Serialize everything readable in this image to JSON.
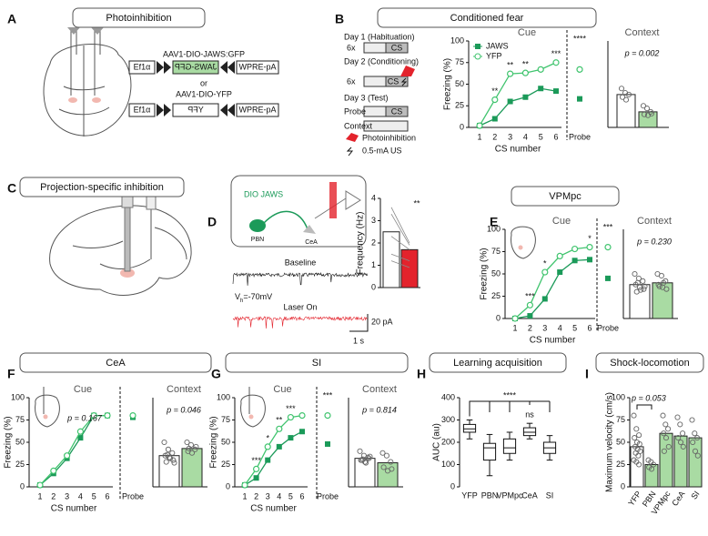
{
  "panel_labels": [
    "A",
    "B",
    "C",
    "D",
    "E",
    "F",
    "G",
    "H",
    "I"
  ],
  "panel_titles": [
    "Photoinhibition",
    "Conditioned fear",
    "Projection-specific inhibition",
    "VPMpc",
    "CeA",
    "SI",
    "Learning acquisition",
    "Shock-locomotion"
  ],
  "construct_a": {
    "vector": "AAV1-DIO-JAWS:GFP",
    "promoter": "Ef1α",
    "gene": "JAWS-GFP",
    "tail": "WPRE-pA"
  },
  "or": "or",
  "construct_b": {
    "vector": "AAV1-DIO-YFP",
    "promoter": "Ef1α",
    "gene": "YFP",
    "tail": "WPRE-pA"
  },
  "protocol": {
    "day1": "Day 1 (Habituation)",
    "rep1": "6x",
    "cs1": "CS",
    "day2": "Day 2 (Conditioning)",
    "rep2": "6x",
    "cs2": "CS",
    "day3": "Day 3 (Test)",
    "probe": "Probe",
    "cs3": "CS",
    "context": "Context",
    "legend_light": "Photoinhibition",
    "legend_shock": "0.5-mA US"
  },
  "circuit": {
    "virus": "DIO JAWS",
    "source": "PBN",
    "target": "CeA",
    "baseline": "Baseline",
    "holding": "V",
    "holding_sub": "h",
    "holding_value": "=-70mV",
    "laser": "Laser On",
    "scale_y": "20 pA",
    "scale_x": "1 s"
  },
  "chart_data": [
    {
      "type": "line",
      "title": "Cue",
      "xlabel": "CS number",
      "ylabel": "Freezing (%)",
      "legend": "top-left",
      "categories": [
        "1",
        "2",
        "3",
        "4",
        "5",
        "6"
      ],
      "probe_label": "Probe",
      "series": [
        {
          "name": "JAWS",
          "color": "#1b9a59",
          "marker": "square",
          "values": [
            2,
            10,
            30,
            35,
            45,
            42
          ],
          "probe": 33
        },
        {
          "name": "YFP",
          "color": "#40c46e",
          "marker": "circle",
          "values": [
            2,
            32,
            62,
            63,
            67,
            75
          ],
          "probe": 67
        }
      ],
      "significance": [
        null,
        "**",
        "**",
        "**",
        null,
        "***"
      ],
      "probe_significance": "****",
      "ylim": [
        0,
        100
      ],
      "yticks": [
        0,
        25,
        50,
        75,
        100
      ]
    },
    {
      "type": "bar",
      "title": "Context",
      "annotation": "p = 0.002",
      "values": [
        38,
        18
      ],
      "colors": [
        "#ffffff",
        "#a9dba3"
      ],
      "points": [
        [
          45,
          40,
          38,
          35,
          32
        ],
        [
          25,
          22,
          18,
          15,
          14,
          16
        ]
      ],
      "ylim": [
        0,
        100
      ]
    },
    {
      "type": "bar",
      "ylabel": "Frequency (Hz)",
      "values": [
        2.5,
        1.7
      ],
      "colors": [
        "#ffffff",
        "#e3232c"
      ],
      "paired": true,
      "points": [
        [
          3.6,
          3.3,
          2.3,
          1.5,
          1.2
        ],
        [
          2.0,
          1.9,
          1.7,
          1.2,
          0.9
        ]
      ],
      "significance": "**",
      "ylim": [
        0,
        4
      ],
      "yticks": [
        0,
        1,
        2,
        3,
        4
      ]
    },
    {
      "type": "line",
      "title": "Cue",
      "xlabel": "CS number",
      "ylabel": "Freezing (%)",
      "categories": [
        "1",
        "2",
        "3",
        "4",
        "5",
        "6"
      ],
      "probe_label": "Probe",
      "series": [
        {
          "color": "#1b9a59",
          "marker": "square",
          "values": [
            0,
            3,
            22,
            52,
            65,
            66
          ],
          "probe": 45
        },
        {
          "color": "#40c46e",
          "marker": "circle",
          "values": [
            0,
            15,
            52,
            70,
            78,
            80
          ],
          "probe": 80
        }
      ],
      "significance": [
        null,
        "***",
        "*",
        null,
        null,
        "*"
      ],
      "probe_significance": "***",
      "ylim": [
        0,
        100
      ],
      "yticks": [
        0,
        25,
        50,
        75,
        100
      ]
    },
    {
      "type": "bar",
      "title": "Context",
      "annotation": "p = 0.230",
      "values": [
        38,
        40
      ],
      "colors": [
        "#ffffff",
        "#a9dba3"
      ],
      "points": [
        [
          50,
          45,
          42,
          38,
          35,
          33,
          30,
          32,
          36,
          40
        ],
        [
          50,
          48,
          42,
          38,
          35,
          33,
          36,
          40
        ]
      ],
      "ylim": [
        0,
        100
      ]
    },
    {
      "type": "line",
      "title": "Cue",
      "xlabel": "CS number",
      "ylabel": "Freezing (%)",
      "annotation": "p = 0.167",
      "categories": [
        "1",
        "2",
        "3",
        "4",
        "5",
        "6"
      ],
      "probe_label": "Probe",
      "series": [
        {
          "color": "#1b9a59",
          "marker": "square",
          "values": [
            2,
            15,
            32,
            55,
            80,
            80
          ],
          "probe": 78
        },
        {
          "color": "#40c46e",
          "marker": "circle",
          "values": [
            2,
            18,
            35,
            62,
            80,
            80
          ],
          "probe": 80
        }
      ],
      "ylim": [
        0,
        100
      ],
      "yticks": [
        0,
        25,
        50,
        75,
        100
      ]
    },
    {
      "type": "bar",
      "title": "Context",
      "annotation": "p = 0.046",
      "values": [
        35,
        43
      ],
      "colors": [
        "#ffffff",
        "#a9dba3"
      ],
      "points": [
        [
          50,
          42,
          38,
          35,
          33,
          30,
          28,
          32,
          27,
          36
        ],
        [
          50,
          47,
          42,
          40,
          38,
          45,
          43
        ]
      ],
      "ylim": [
        0,
        100
      ]
    },
    {
      "type": "line",
      "title": "Cue",
      "xlabel": "CS number",
      "ylabel": "Freezing (%)",
      "categories": [
        "1",
        "2",
        "3",
        "4",
        "5",
        "6"
      ],
      "probe_label": "Probe",
      "series": [
        {
          "color": "#1b9a59",
          "marker": "square",
          "values": [
            2,
            10,
            30,
            45,
            55,
            62
          ],
          "probe": 48
        },
        {
          "color": "#40c46e",
          "marker": "circle",
          "values": [
            2,
            20,
            45,
            65,
            78,
            80
          ],
          "probe": 80
        }
      ],
      "significance": [
        null,
        "***",
        "*",
        "**",
        "***",
        null
      ],
      "probe_significance": "***",
      "ylim": [
        0,
        100
      ],
      "yticks": [
        0,
        25,
        50,
        75,
        100
      ]
    },
    {
      "type": "bar",
      "title": "Context",
      "annotation": "p = 0.814",
      "values": [
        32,
        27
      ],
      "colors": [
        "#ffffff",
        "#a9dba3"
      ],
      "points": [
        [
          40,
          35,
          33,
          30,
          28,
          32,
          30,
          27,
          34,
          31
        ],
        [
          38,
          35,
          28,
          22,
          18,
          20
        ]
      ],
      "ylim": [
        0,
        100
      ]
    },
    {
      "type": "box",
      "ylabel": "AUC (au)",
      "categories": [
        "YFP",
        "PBN",
        "VPMpc",
        "CeA",
        "SI"
      ],
      "boxes": [
        {
          "whisker_low": 215,
          "q1": 245,
          "median": 260,
          "q3": 280,
          "whisker_high": 300
        },
        {
          "whisker_low": 50,
          "q1": 120,
          "median": 175,
          "q3": 195,
          "whisker_high": 235
        },
        {
          "whisker_low": 120,
          "q1": 150,
          "median": 175,
          "q3": 215,
          "whisker_high": 245
        },
        {
          "whisker_low": 215,
          "q1": 230,
          "median": 245,
          "q3": 265,
          "whisker_high": 285
        },
        {
          "whisker_low": 120,
          "q1": 150,
          "median": 175,
          "q3": 200,
          "whisker_high": 230
        }
      ],
      "bracket_label": "****",
      "significance": [
        null,
        null,
        null,
        "ns",
        null
      ],
      "ylim": [
        0,
        400
      ],
      "yticks": [
        0,
        100,
        200,
        300,
        400
      ]
    },
    {
      "type": "bar",
      "ylabel": "Maximum velocity (cm/s)",
      "categories": [
        "YFP",
        "PBN",
        "VPMpc",
        "CeA",
        "SI"
      ],
      "values": [
        45,
        25,
        60,
        57,
        55
      ],
      "colors": [
        "#ffffff",
        "#a9dba3",
        "#a9dba3",
        "#a9dba3",
        "#a9dba3"
      ],
      "points": [
        [
          80,
          65,
          58,
          55,
          50,
          48,
          45,
          42,
          40,
          38,
          35,
          30,
          28,
          25
        ],
        [
          30,
          28,
          25,
          22,
          20
        ],
        [
          80,
          70,
          65,
          60,
          55,
          45,
          40
        ],
        [
          78,
          70,
          60,
          55,
          50,
          45
        ],
        [
          75,
          60,
          55,
          50,
          40,
          35
        ]
      ],
      "annotation": "p = 0.053",
      "annotation_bracket": true,
      "ylim": [
        0,
        100
      ],
      "yticks": [
        0,
        25,
        50,
        75,
        100
      ]
    }
  ]
}
